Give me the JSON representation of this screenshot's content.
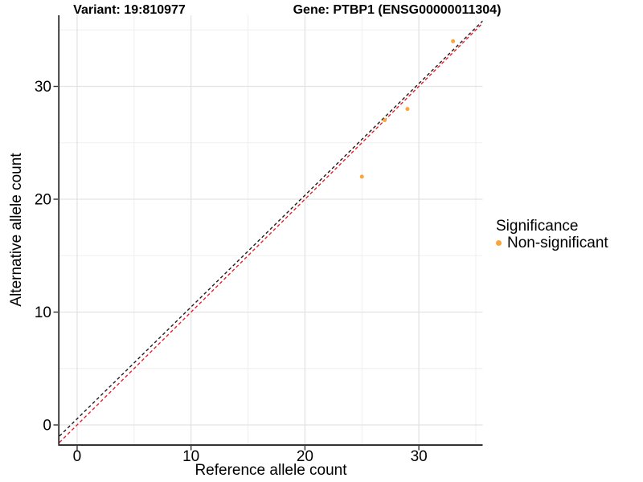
{
  "chart_data": {
    "type": "scatter",
    "title_left": "Variant: 19:810977",
    "title_right": "Gene: PTBP1 (ENSG00000011304)",
    "xlabel": "Reference allele count",
    "ylabel": "Alternative allele count",
    "xlim": [
      -1.55,
      35.6
    ],
    "ylim": [
      -1.71,
      36.3
    ],
    "x_major_ticks": [
      0,
      10,
      20,
      30
    ],
    "y_major_ticks": [
      0,
      10,
      20,
      30
    ],
    "x_minor_ticks": [
      5,
      15,
      25,
      35
    ],
    "y_minor_ticks": [
      5,
      15,
      25,
      35
    ],
    "grid": true,
    "legend_position": "right",
    "points": [
      {
        "x": 25,
        "y": 22,
        "significance": "Non-significant"
      },
      {
        "x": 27,
        "y": 27,
        "significance": "Non-significant"
      },
      {
        "x": 29,
        "y": 28,
        "significance": "Non-significant"
      },
      {
        "x": 33,
        "y": 34,
        "significance": "Non-significant"
      }
    ],
    "point_color": "#FAA43A",
    "lines": [
      {
        "name": "identity-line",
        "slope": 1.0,
        "intercept": 0.0,
        "color": "#ED1C24",
        "style": "dashed"
      },
      {
        "name": "fit-line",
        "slope": 0.99,
        "intercept": 0.55,
        "color": "#1A1A1A",
        "style": "dashed"
      }
    ],
    "legend": {
      "title": "Significance",
      "items": [
        {
          "label": "Non-significant",
          "color": "#FAA43A"
        }
      ]
    },
    "colors": {
      "major_grid": "#E3E3E3",
      "minor_grid": "#F0F0F0",
      "axis_line": "#333333",
      "tick_text": "#000000"
    }
  }
}
